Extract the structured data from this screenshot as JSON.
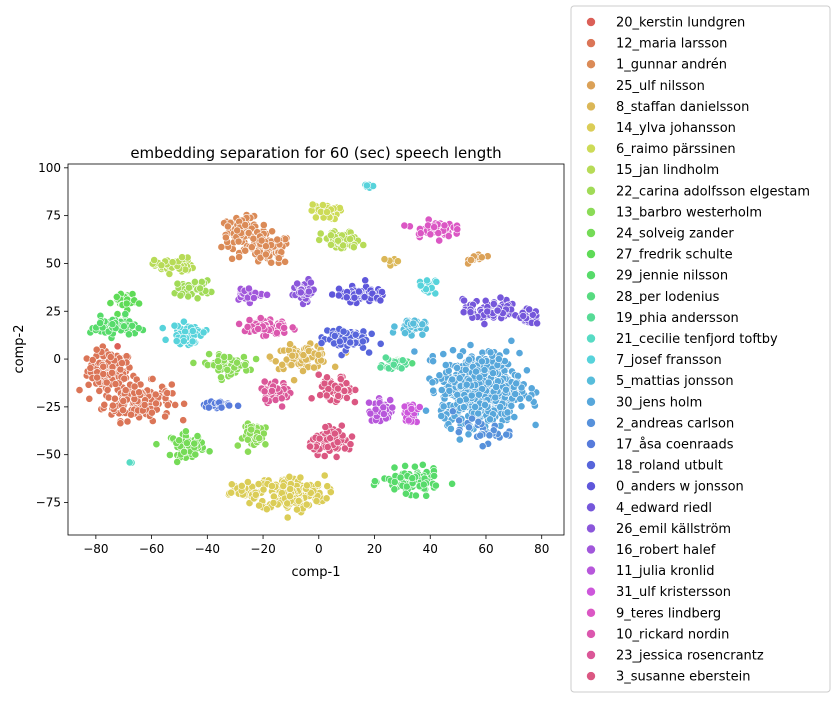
{
  "chart_data": {
    "type": "scatter",
    "title": "embedding separation for 60 (sec) speech length",
    "xlabel": "comp-1",
    "ylabel": "comp-2",
    "xlim": [
      -90,
      88
    ],
    "ylim": [
      -92,
      102
    ],
    "xticks": [
      -80,
      -60,
      -40,
      -20,
      0,
      20,
      40,
      60,
      80
    ],
    "yticks": [
      -75,
      -50,
      -25,
      0,
      25,
      50,
      75,
      100
    ],
    "grid": false,
    "legend_placement": "outside-right",
    "series": [
      {
        "name": "20_kerstin lundgren",
        "color": "#db5f57",
        "clusters": [
          {
            "cx": -72,
            "cy": 6,
            "sx": 0.5,
            "sy": 0.5,
            "n": 2
          }
        ]
      },
      {
        "name": "12_maria larsson",
        "color": "#db7557",
        "clusters": [
          {
            "cx": -75,
            "cy": -6,
            "sx": 4,
            "sy": 5,
            "n": 110
          },
          {
            "cx": -65,
            "cy": -22,
            "sx": 6,
            "sy": 5,
            "n": 150
          }
        ]
      },
      {
        "name": "1_gunnar andrén",
        "color": "#db8b57",
        "clusters": [
          {
            "cx": -27,
            "cy": 66,
            "sx": 4,
            "sy": 4,
            "n": 90
          },
          {
            "cx": -18,
            "cy": 57,
            "sx": 4,
            "sy": 4,
            "n": 90
          }
        ]
      },
      {
        "name": "25_ulf nilsson",
        "color": "#dba157",
        "clusters": [
          {
            "cx": 57,
            "cy": 53,
            "sx": 1.5,
            "sy": 1.2,
            "n": 14
          }
        ]
      },
      {
        "name": "8_staffan danielsson",
        "color": "#dbb757",
        "clusters": [
          {
            "cx": 27,
            "cy": 51,
            "sx": 1.2,
            "sy": 1.2,
            "n": 10
          },
          {
            "cx": -6,
            "cy": 1,
            "sx": 5,
            "sy": 3,
            "n": 80
          }
        ]
      },
      {
        "name": "14_ylva johansson",
        "color": "#dbcd57",
        "clusters": [
          {
            "cx": -10,
            "cy": -70,
            "sx": 6,
            "sy": 4.5,
            "n": 180
          },
          {
            "cx": -28,
            "cy": -69,
            "sx": 4,
            "sy": 2,
            "n": 40
          }
        ]
      },
      {
        "name": "6_raimo pärssinen",
        "color": "#cddb57",
        "clusters": [
          {
            "cx": 2,
            "cy": 77,
            "sx": 2.5,
            "sy": 2,
            "n": 40
          }
        ]
      },
      {
        "name": "15_jan lindholm",
        "color": "#b7db57",
        "clusters": [
          {
            "cx": -52,
            "cy": 49,
            "sx": 3.5,
            "sy": 2,
            "n": 50
          },
          {
            "cx": 8,
            "cy": 62,
            "sx": 3.5,
            "sy": 2.5,
            "n": 60
          }
        ]
      },
      {
        "name": "22_carina adolfsson elgestam",
        "color": "#a1db57",
        "clusters": [
          {
            "cx": -45,
            "cy": 37,
            "sx": 3,
            "sy": 2,
            "n": 40
          }
        ]
      },
      {
        "name": "13_barbro westerholm",
        "color": "#8bdb57",
        "clusters": [
          {
            "cx": -33,
            "cy": -3,
            "sx": 4,
            "sy": 2.5,
            "n": 70
          },
          {
            "cx": -22,
            "cy": -40,
            "sx": 2.5,
            "sy": 3,
            "n": 50
          }
        ]
      },
      {
        "name": "24_solveig zander",
        "color": "#75db57",
        "clusters": [
          {
            "cx": -47,
            "cy": -45,
            "sx": 3,
            "sy": 3,
            "n": 60
          }
        ]
      },
      {
        "name": "27_fredrik schulte",
        "color": "#5fdb57",
        "clusters": [
          {
            "cx": -70,
            "cy": 30,
            "sx": 2,
            "sy": 3,
            "n": 30
          }
        ]
      },
      {
        "name": "29_jennie nilsson",
        "color": "#57db6a",
        "clusters": [
          {
            "cx": -74,
            "cy": 17,
            "sx": 4,
            "sy": 2.5,
            "n": 60
          },
          {
            "cx": 33,
            "cy": -64,
            "sx": 5,
            "sy": 3,
            "n": 110
          }
        ]
      },
      {
        "name": "28_per lodenius",
        "color": "#57db80",
        "clusters": [
          {
            "cx": 29,
            "cy": -2,
            "sx": 2,
            "sy": 1.2,
            "n": 20
          }
        ]
      },
      {
        "name": "19_phia andersson",
        "color": "#57db96",
        "clusters": [
          {
            "cx": 27,
            "cy": -3,
            "sx": 2,
            "sy": 1.5,
            "n": 20
          }
        ]
      },
      {
        "name": "21_cecilie tenfjord toftby",
        "color": "#57dbc4",
        "clusters": [
          {
            "cx": -68,
            "cy": -54,
            "sx": 0.6,
            "sy": 0.6,
            "n": 3
          }
        ]
      },
      {
        "name": "7_josef fransson",
        "color": "#57d3db",
        "clusters": [
          {
            "cx": -47,
            "cy": 13,
            "sx": 3,
            "sy": 2.5,
            "n": 50
          },
          {
            "cx": 39,
            "cy": 38,
            "sx": 1.5,
            "sy": 2,
            "n": 20
          },
          {
            "cx": 18,
            "cy": 91,
            "sx": 1,
            "sy": 1,
            "n": 10
          }
        ]
      },
      {
        "name": "5_mattias jonsson",
        "color": "#57bddb",
        "clusters": [
          {
            "cx": 33,
            "cy": 17,
            "sx": 2.5,
            "sy": 2,
            "n": 40
          }
        ]
      },
      {
        "name": "30_jens holm",
        "color": "#57a7db",
        "clusters": [
          {
            "cx": 58,
            "cy": -15,
            "sx": 7,
            "sy": 9,
            "n": 600
          }
        ]
      },
      {
        "name": "2_andreas carlson",
        "color": "#5791db",
        "clusters": [
          {
            "cx": 58,
            "cy": -38,
            "sx": 5,
            "sy": 3,
            "n": 30
          }
        ]
      },
      {
        "name": "17_åsa coenraads",
        "color": "#577bdb",
        "clusters": [
          {
            "cx": -36,
            "cy": -24,
            "sx": 2.5,
            "sy": 1,
            "n": 20
          }
        ]
      },
      {
        "name": "18_roland utbult",
        "color": "#5765db",
        "clusters": [
          {
            "cx": 9,
            "cy": 11,
            "sx": 4,
            "sy": 3,
            "n": 80
          }
        ]
      },
      {
        "name": "0_anders w jonsson",
        "color": "#5f57db",
        "clusters": [
          {
            "cx": 15,
            "cy": 34,
            "sx": 4.5,
            "sy": 2,
            "n": 70
          }
        ]
      },
      {
        "name": "4_edward riedl",
        "color": "#7557db",
        "clusters": [
          {
            "cx": 62,
            "cy": 25,
            "sx": 5,
            "sy": 3,
            "n": 80
          },
          {
            "cx": 75,
            "cy": 22,
            "sx": 2,
            "sy": 2,
            "n": 25
          }
        ]
      },
      {
        "name": "26_emil källström",
        "color": "#8b57db",
        "clusters": [
          {
            "cx": -5,
            "cy": 35,
            "sx": 2,
            "sy": 3,
            "n": 40
          }
        ]
      },
      {
        "name": "16_robert halef",
        "color": "#a157db",
        "clusters": [
          {
            "cx": -25,
            "cy": 34,
            "sx": 2.5,
            "sy": 1.5,
            "n": 30
          }
        ]
      },
      {
        "name": "11_julia kronlid",
        "color": "#b757db",
        "clusters": [
          {
            "cx": 23,
            "cy": -27,
            "sx": 2.5,
            "sy": 3,
            "n": 40
          }
        ]
      },
      {
        "name": "31_ulf kristersson",
        "color": "#cd57db",
        "clusters": [
          {
            "cx": 33,
            "cy": -31,
            "sx": 1.5,
            "sy": 2,
            "n": 15
          },
          {
            "cx": 33,
            "cy": -25,
            "sx": 1.5,
            "sy": 1.5,
            "n": 10
          }
        ]
      },
      {
        "name": "9_teres lindberg",
        "color": "#db57c4",
        "clusters": [
          {
            "cx": 41,
            "cy": 68,
            "sx": 3.5,
            "sy": 2,
            "n": 50
          }
        ]
      },
      {
        "name": "10_rickard nordin",
        "color": "#db57ae",
        "clusters": [
          {
            "cx": -19,
            "cy": 17,
            "sx": 4,
            "sy": 2.5,
            "n": 60
          }
        ]
      },
      {
        "name": "23_jessica rosencrantz",
        "color": "#db5798",
        "clusters": [
          {
            "cx": -15,
            "cy": -17,
            "sx": 3,
            "sy": 2.5,
            "n": 50
          }
        ]
      },
      {
        "name": "3_susanne eberstein",
        "color": "#db5782",
        "clusters": [
          {
            "cx": 6,
            "cy": -17,
            "sx": 3,
            "sy": 4,
            "n": 60
          },
          {
            "cx": 5,
            "cy": -43,
            "sx": 4,
            "sy": 3,
            "n": 80
          }
        ]
      }
    ]
  }
}
